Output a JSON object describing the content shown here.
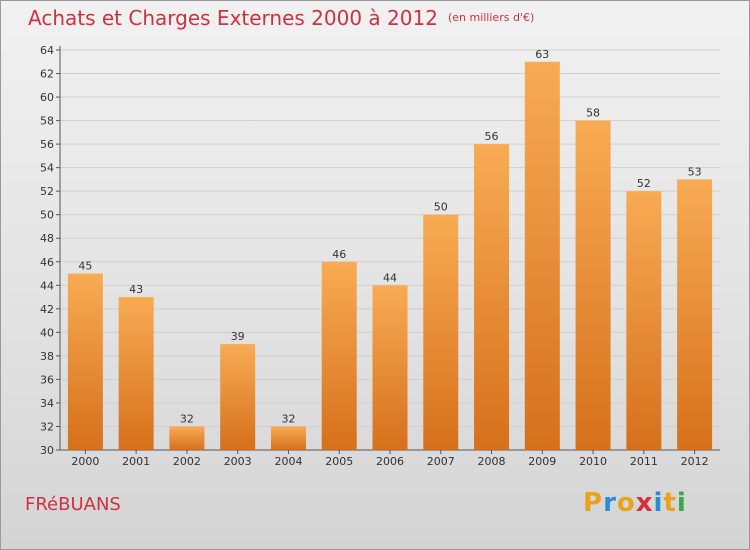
{
  "title": "Achats et Charges Externes 2000 à 2012",
  "unit": "(en milliers d'€)",
  "place": "FRéBUANS",
  "logo": "Proxiti",
  "colors": {
    "bar_top": "#f7a94f",
    "bar_bottom": "#d8731c",
    "title": "#d2303f"
  },
  "chart_data": {
    "type": "bar",
    "categories": [
      "2000",
      "2001",
      "2002",
      "2003",
      "2004",
      "2005",
      "2006",
      "2007",
      "2008",
      "2009",
      "2010",
      "2011",
      "2012"
    ],
    "values": [
      45,
      43,
      32,
      39,
      32,
      46,
      44,
      50,
      56,
      63,
      58,
      52,
      53
    ],
    "ylim": [
      30,
      64
    ],
    "yticks": [
      30,
      32,
      34,
      36,
      38,
      40,
      42,
      44,
      46,
      48,
      50,
      52,
      54,
      56,
      58,
      60,
      62,
      64
    ],
    "grid": true
  }
}
